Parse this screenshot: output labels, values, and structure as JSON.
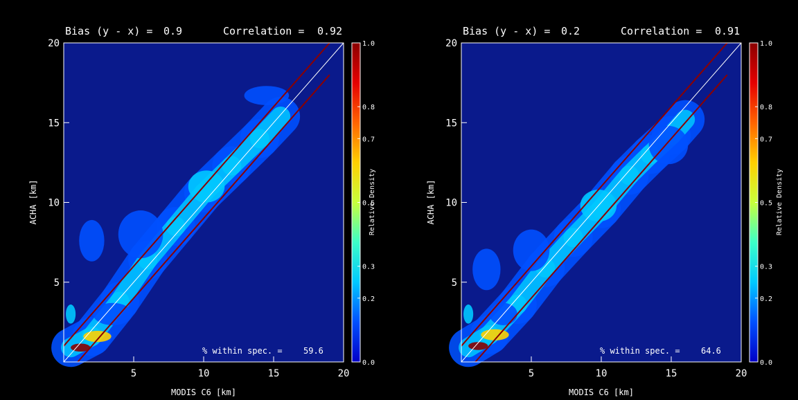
{
  "chart_data": [
    {
      "type": "heatmap",
      "panel": "left",
      "header": {
        "bias_label": "Bias (y - x) =",
        "bias_value": "0.9",
        "corr_label": "Correlation =",
        "corr_value": "0.92"
      },
      "xlabel": "MODIS C6 [km]",
      "ylabel": "ACHA [km]",
      "xlim": [
        0,
        20
      ],
      "ylim": [
        0,
        20
      ],
      "x_ticks": [
        "5",
        "10",
        "15",
        "20"
      ],
      "y_ticks": [
        "5",
        "10",
        "15",
        "20"
      ],
      "one_to_one_line": [
        [
          0,
          0
        ],
        [
          20,
          20
        ]
      ],
      "spec_lines": [
        {
          "points": [
            [
              0,
              1.0
            ],
            [
              19,
              20
            ]
          ],
          "color": "#8b0000"
        },
        {
          "points": [
            [
              1,
              0
            ],
            [
              19,
              18
            ]
          ],
          "color": "#8b0000"
        }
      ],
      "annotation": {
        "label": "% within spec. =",
        "value": "59.6"
      },
      "density_ridge": [
        [
          0.5,
          0.9
        ],
        [
          2,
          1.6
        ],
        [
          4,
          3.8
        ],
        [
          6,
          6.4
        ],
        [
          8,
          8.5
        ],
        [
          10,
          10.6
        ],
        [
          12,
          12.3
        ],
        [
          14,
          14.0
        ],
        [
          15.5,
          15.4
        ]
      ],
      "blobs": [
        {
          "x": 1.2,
          "y": 0.9,
          "rx": 0.7,
          "ry": 0.25,
          "v": 1.0
        },
        {
          "x": 2.4,
          "y": 1.6,
          "rx": 1.0,
          "ry": 0.35,
          "v": 0.55
        },
        {
          "x": 0.5,
          "y": 3.0,
          "rx": 0.35,
          "ry": 0.6,
          "v": 0.25
        },
        {
          "x": 2.0,
          "y": 7.6,
          "rx": 0.9,
          "ry": 1.3,
          "v": 0.06
        },
        {
          "x": 3.5,
          "y": 3.0,
          "rx": 1.4,
          "ry": 0.7,
          "v": 0.05
        },
        {
          "x": 5.5,
          "y": 8.0,
          "rx": 1.6,
          "ry": 1.5,
          "v": 0.08
        },
        {
          "x": 10.2,
          "y": 11.0,
          "rx": 1.3,
          "ry": 1.0,
          "v": 0.14
        },
        {
          "x": 14.5,
          "y": 16.7,
          "rx": 1.6,
          "ry": 0.6,
          "v": 0.06
        }
      ]
    },
    {
      "type": "heatmap",
      "panel": "right",
      "header": {
        "bias_label": "Bias (y - x) =",
        "bias_value": "0.2",
        "corr_label": "Correlation =",
        "corr_value": "0.91"
      },
      "xlabel": "MODIS C6 [km]",
      "ylabel": "ACHA [km]",
      "xlim": [
        0,
        20
      ],
      "ylim": [
        0,
        20
      ],
      "x_ticks": [
        "5",
        "10",
        "15",
        "20"
      ],
      "y_ticks": [
        "5",
        "10",
        "15",
        "20"
      ],
      "one_to_one_line": [
        [
          0,
          0
        ],
        [
          20,
          20
        ]
      ],
      "spec_lines": [
        {
          "points": [
            [
              0,
              1.0
            ],
            [
              19,
              20
            ]
          ],
          "color": "#8b0000"
        },
        {
          "points": [
            [
              1,
              0
            ],
            [
              19,
              18
            ]
          ],
          "color": "#8b0000"
        }
      ],
      "annotation": {
        "label": "% within spec. =",
        "value": "64.6"
      },
      "density_ridge": [
        [
          0.5,
          0.9
        ],
        [
          2,
          1.7
        ],
        [
          4,
          3.6
        ],
        [
          6,
          5.9
        ],
        [
          8,
          7.8
        ],
        [
          10,
          9.6
        ],
        [
          12,
          11.7
        ],
        [
          13.5,
          13.0
        ],
        [
          15,
          14.2
        ],
        [
          16,
          15.2
        ]
      ],
      "blobs": [
        {
          "x": 1.2,
          "y": 1.0,
          "rx": 0.7,
          "ry": 0.25,
          "v": 1.0
        },
        {
          "x": 2.4,
          "y": 1.7,
          "rx": 1.0,
          "ry": 0.35,
          "v": 0.55
        },
        {
          "x": 0.5,
          "y": 3.0,
          "rx": 0.35,
          "ry": 0.6,
          "v": 0.25
        },
        {
          "x": 1.8,
          "y": 5.8,
          "rx": 1.0,
          "ry": 1.3,
          "v": 0.06
        },
        {
          "x": 3.0,
          "y": 3.0,
          "rx": 1.0,
          "ry": 0.7,
          "v": 0.05
        },
        {
          "x": 5.0,
          "y": 7.0,
          "rx": 1.3,
          "ry": 1.3,
          "v": 0.08
        },
        {
          "x": 9.8,
          "y": 9.8,
          "rx": 1.3,
          "ry": 1.0,
          "v": 0.16
        },
        {
          "x": 14.8,
          "y": 13.6,
          "rx": 1.4,
          "ry": 1.2,
          "v": 0.06
        }
      ]
    }
  ],
  "colorbar": {
    "label": "Relative Density",
    "ticks": [
      "0.0",
      "0.2",
      "0.3",
      "0.5",
      "0.7",
      "0.8",
      "1.0"
    ],
    "tick_values": [
      0.0,
      0.2,
      0.3,
      0.5,
      0.7,
      0.8,
      1.0
    ],
    "colors": [
      "#0000c8",
      "#0050ff",
      "#00c8ff",
      "#3cffc8",
      "#c8ff3c",
      "#ffd000",
      "#ff6400",
      "#e60000",
      "#8b0000"
    ]
  },
  "colors": {
    "background": "#000000",
    "plot_background": "#0a1a8c",
    "text": "#ffffff",
    "one_to_one": "#ffffff"
  }
}
